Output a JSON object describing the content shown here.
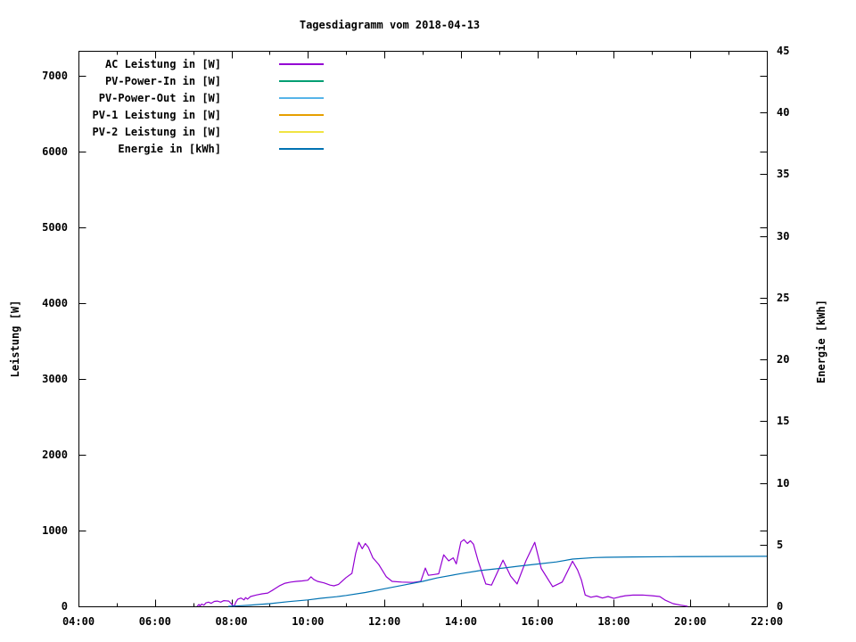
{
  "title": "Tagesdiagramm vom 2018-04-13",
  "chart_data": {
    "type": "line",
    "title": "Tagesdiagramm vom 2018-04-13",
    "grid": false,
    "legend_position": "top-left-inside",
    "x_axis": {
      "unit": "time",
      "start_hour": 4,
      "end_hour": 22,
      "major_step_hours": 2,
      "minor_step_hours": 1,
      "tick_labels": [
        "04:00",
        "06:00",
        "08:00",
        "10:00",
        "12:00",
        "14:00",
        "16:00",
        "18:00",
        "20:00",
        "22:00"
      ]
    },
    "y_left": {
      "label": "Leistung [W]",
      "range": [
        0,
        7330
      ],
      "ticks": [
        0,
        1000,
        2000,
        3000,
        4000,
        5000,
        6000,
        7000
      ]
    },
    "y_right": {
      "label": "Energie [kWh]",
      "range": [
        0,
        45
      ],
      "ticks": [
        0,
        5,
        10,
        15,
        20,
        25,
        30,
        35,
        40,
        45
      ]
    },
    "series": [
      {
        "name": "AC Leistung in [W]",
        "color": "#9400d3",
        "axis": "left",
        "x_hours": [
          7.1,
          7.15,
          7.18,
          7.22,
          7.28,
          7.33,
          7.4,
          7.47,
          7.55,
          7.63,
          7.72,
          7.8,
          7.93,
          8.03,
          8.07,
          8.12,
          8.17,
          8.25,
          8.33,
          8.37,
          8.42,
          8.5,
          8.65,
          8.8,
          8.95,
          9.1,
          9.25,
          9.4,
          9.55,
          9.7,
          9.85,
          10.0,
          10.08,
          10.15,
          10.25,
          10.42,
          10.58,
          10.68,
          10.8,
          11.0,
          11.15,
          11.25,
          11.33,
          11.42,
          11.5,
          11.58,
          11.7,
          11.85,
          12.05,
          12.2,
          12.45,
          12.75,
          12.95,
          13.07,
          13.15,
          13.3,
          13.42,
          13.55,
          13.68,
          13.8,
          13.88,
          14.0,
          14.08,
          14.17,
          14.25,
          14.33,
          14.45,
          14.65,
          14.8,
          15.1,
          15.3,
          15.47,
          15.7,
          15.93,
          16.1,
          16.4,
          16.65,
          16.92,
          17.05,
          17.15,
          17.25,
          17.4,
          17.55,
          17.7,
          17.85,
          18.0,
          18.15,
          18.3,
          18.5,
          18.75,
          19.0,
          19.2,
          19.35,
          19.55,
          19.75,
          19.93
        ],
        "values": [
          0,
          25,
          5,
          30,
          15,
          45,
          55,
          40,
          65,
          70,
          55,
          75,
          70,
          15,
          0,
          60,
          95,
          110,
          85,
          115,
          95,
          130,
          150,
          165,
          175,
          220,
          270,
          305,
          320,
          330,
          335,
          345,
          390,
          355,
          330,
          310,
          280,
          271,
          290,
          380,
          435,
          700,
          845,
          760,
          830,
          780,
          640,
          553,
          390,
          330,
          320,
          315,
          330,
          505,
          410,
          420,
          430,
          680,
          600,
          640,
          560,
          850,
          880,
          830,
          865,
          820,
          600,
          295,
          280,
          610,
          400,
          295,
          600,
          845,
          500,
          260,
          320,
          595,
          480,
          350,
          150,
          120,
          135,
          110,
          130,
          105,
          125,
          140,
          148,
          150,
          140,
          130,
          80,
          35,
          15,
          0
        ]
      },
      {
        "name": "PV-Power-In in [W]",
        "color": "#009e73",
        "axis": "left",
        "x_hours": [],
        "values": []
      },
      {
        "name": "PV-Power-Out in [W]",
        "color": "#56b4e9",
        "axis": "left",
        "x_hours": [],
        "values": []
      },
      {
        "name": "PV-1 Leistung in [W]",
        "color": "#e69f00",
        "axis": "left",
        "x_hours": [],
        "values": []
      },
      {
        "name": "PV-2 Leistung in [W]",
        "color": "#f0e442",
        "axis": "left",
        "x_hours": [],
        "values": []
      },
      {
        "name": "Energie in [kWh]",
        "color": "#0072b2",
        "axis": "right",
        "x_hours": [
          7.92,
          8.25,
          8.5,
          9.0,
          9.5,
          10.0,
          10.33,
          10.75,
          11.0,
          11.5,
          12.0,
          12.5,
          13.0,
          13.37,
          14.0,
          14.5,
          15.1,
          15.5,
          15.94,
          16.5,
          16.92,
          17.5,
          17.8,
          18.5,
          19.5,
          20.5,
          22.0
        ],
        "values": [
          0,
          0.05,
          0.1,
          0.22,
          0.38,
          0.52,
          0.65,
          0.78,
          0.88,
          1.12,
          1.42,
          1.72,
          2.02,
          2.3,
          2.65,
          2.9,
          3.1,
          3.25,
          3.4,
          3.6,
          3.83,
          3.95,
          3.97,
          4.0,
          4.02,
          4.04,
          4.05
        ]
      }
    ]
  }
}
